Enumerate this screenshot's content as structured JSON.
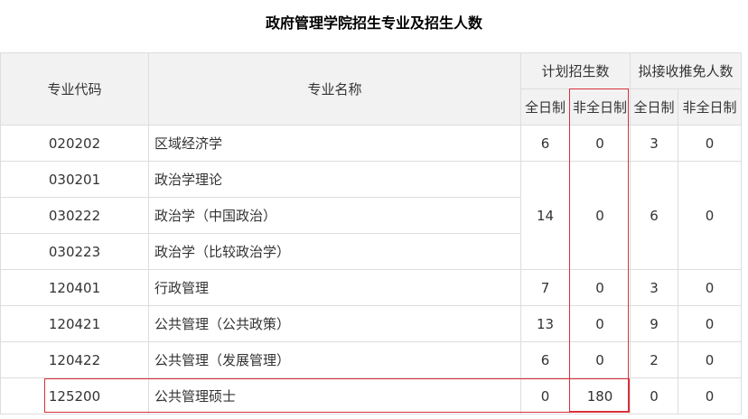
{
  "title": "政府管理学院招生专业及招生人数",
  "headers": {
    "code": "专业代码",
    "name": "专业名称",
    "plan": "计划招生数",
    "exempt": "拟接收推免人数",
    "full": "全日制",
    "part": "非全日制"
  },
  "rows": [
    {
      "code": "020202",
      "name": "区域经济学",
      "plan_full": "6",
      "plan_part": "0",
      "ex_full": "3",
      "ex_part": "0"
    },
    {
      "code": "030201",
      "name": "政治学理论",
      "plan_full": "14",
      "plan_part": "0",
      "ex_full": "6",
      "ex_part": "0"
    },
    {
      "code": "030222",
      "name": "政治学（中国政治）"
    },
    {
      "code": "030223",
      "name": "政治学（比较政治学）"
    },
    {
      "code": "120401",
      "name": "行政管理",
      "plan_full": "7",
      "plan_part": "0",
      "ex_full": "3",
      "ex_part": "0"
    },
    {
      "code": "120421",
      "name": "公共管理（公共政策）",
      "plan_full": "13",
      "plan_part": "0",
      "ex_full": "9",
      "ex_part": "0"
    },
    {
      "code": "120422",
      "name": "公共管理（发展管理）",
      "plan_full": "6",
      "plan_part": "0",
      "ex_full": "2",
      "ex_part": "0"
    },
    {
      "code": "125200",
      "name": "公共管理硕士",
      "plan_full": "0",
      "plan_part": "180",
      "ex_full": "0",
      "ex_part": "0"
    }
  ],
  "highlight_color": "#d9303a"
}
